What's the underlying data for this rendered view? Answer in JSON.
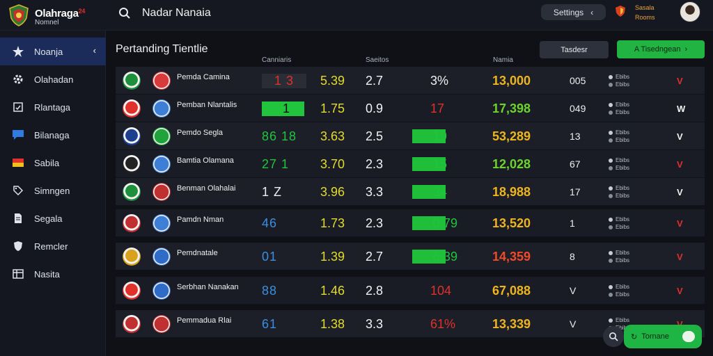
{
  "brand": {
    "name": "Olahraga",
    "name_suffix": "24",
    "subtitle": "Nomnel"
  },
  "header": {
    "title": "Nadar Nanaia",
    "settings_label": "Settings",
    "user_line1": "Sasala",
    "user_line2": "Rooms"
  },
  "sidebar": {
    "items": [
      {
        "label": "Noanja",
        "icon": "star-icon",
        "active": true
      },
      {
        "label": "Olahadan",
        "icon": "gear-icon"
      },
      {
        "label": "Rlantaga",
        "icon": "clipboard-icon"
      },
      {
        "label": "Bilanaga",
        "icon": "chat-icon"
      },
      {
        "label": "Sabila",
        "icon": "flag-icon"
      },
      {
        "label": "Simngen",
        "icon": "tag-icon"
      },
      {
        "label": "Segala",
        "icon": "document-icon"
      },
      {
        "label": "Remcler",
        "icon": "shield-icon"
      },
      {
        "label": "Nasita",
        "icon": "table-icon"
      }
    ]
  },
  "main": {
    "section_title": "Pertanding Tientlie",
    "button_dark": "Tasdesr",
    "button_green": "A Tisedngean",
    "columns": [
      "Canniaris",
      "Saeitos",
      "Namia"
    ]
  },
  "rows": [
    {
      "team": "Pemda Camina",
      "score": "1 3",
      "score_color": "#e0312b",
      "odds": "5.39",
      "ou": "2.7",
      "bar_val": "",
      "pct": "3%",
      "pct_color": "#f0f0f0",
      "big": "13,000",
      "small": "005",
      "vmark": "V",
      "vcolor": "#e0312b",
      "crestA": "#1e8f3a",
      "crestB": "#d93b3b",
      "barFrac": 0
    },
    {
      "team": "Pemban Nlantalis",
      "score": "1",
      "score_color": "#0b0b0b",
      "odds": "1.75",
      "ou": "0.9",
      "bar_val": "",
      "pct": "17",
      "pct_color": "#e0312b",
      "big": "17,398",
      "small": "049",
      "vmark": "W",
      "vcolor": "#f0f0f0",
      "crestA": "#e0312b",
      "crestB": "#3d7fd6",
      "barFrac": 0
    },
    {
      "team": "Pemdo Segla",
      "score": "86 18",
      "score_color": "#21c43d",
      "odds": "3.63",
      "ou": "2.5",
      "bar_val": "19",
      "pct": "",
      "pct_color": "#21c43d",
      "big": "53,289",
      "small": "13",
      "vmark": "V",
      "vcolor": "#f0f0f0",
      "crestA": "#1d3f8f",
      "crestB": "#20a33b",
      "barFrac": 0.75
    },
    {
      "team": "Bamtia Olamana",
      "score": "27 1",
      "score_color": "#21c43d",
      "odds": "3.70",
      "ou": "2.3",
      "bar_val": "15",
      "pct": "",
      "pct_color": "#21c43d",
      "big": "12,028",
      "small": "67",
      "vmark": "V",
      "vcolor": "#e0312b",
      "crestA": "#222222",
      "crestB": "#3d7fd6",
      "barFrac": 0.75
    },
    {
      "team": "Benman Olahalai",
      "score": "1 Z",
      "score_color": "#f0f0f0",
      "odds": "3.96",
      "ou": "3.3",
      "bar_val": "34",
      "pct": "",
      "pct_color": "#21c43d",
      "big": "18,988",
      "small": "17",
      "vmark": "V",
      "vcolor": "#f0f0f0",
      "crestA": "#1e8f3a",
      "crestB": "#c13030",
      "barFrac": 0.75
    },
    {
      "team": "Pamdn Nman",
      "score": "46",
      "score_color": "#3b8fe0",
      "odds": "1.73",
      "ou": "2.3",
      "bar_val": "0.79",
      "pct": "",
      "pct_color": "#21c43d",
      "big": "13,520",
      "small": "1",
      "vmark": "V",
      "vcolor": "#e0312b",
      "crestA": "#c13030",
      "crestB": "#3d7fd6",
      "barFrac": 0.75
    },
    {
      "team": "Pemdnatale",
      "score": "01",
      "score_color": "#3b8fe0",
      "odds": "1.39",
      "ou": "2.7",
      "bar_val": "6.39",
      "pct": "",
      "pct_color": "#21c43d",
      "big": "14,359",
      "small": "8",
      "vmark": "V",
      "vcolor": "#e0312b",
      "crestA": "#d8a21e",
      "crestB": "#2e6cc7",
      "barFrac": 0.75
    },
    {
      "team": "Serbhan Nanakan",
      "score": "88",
      "score_color": "#3b8fe0",
      "odds": "1.46",
      "ou": "2.8",
      "bar_val": "",
      "pct": "104",
      "pct_color": "#e0312b",
      "big": "67,088",
      "small": "V",
      "vmark": "V",
      "vcolor": "#e0312b",
      "crestA": "#e0312b",
      "crestB": "#2e6cc7",
      "barFrac": 0
    },
    {
      "team": "Pemmadua Rlai",
      "score": "61",
      "score_color": "#3b8fe0",
      "odds": "1.38",
      "ou": "3.3",
      "bar_val": "",
      "pct": "61%",
      "pct_color": "#e0312b",
      "big": "13,339",
      "small": "V",
      "vmark": "V",
      "vcolor": "#e0312b",
      "crestA": "#c13030",
      "crestB": "#c13030",
      "barFrac": 0
    }
  ],
  "row_meta": [
    "Ebibs",
    "Ebibs",
    "Ebibs"
  ],
  "fab": {
    "chat_label": "Tornane"
  }
}
